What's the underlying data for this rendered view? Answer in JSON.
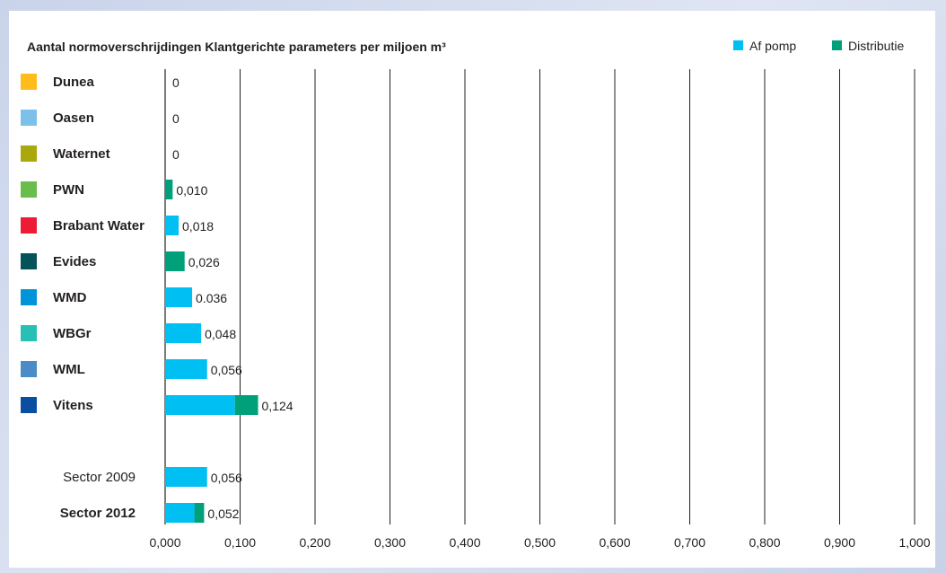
{
  "chart_data": {
    "type": "bar",
    "stacked": true,
    "orientation": "horizontal",
    "title": "Aantal normoverschrijdingen Klantgerichte parameters per miljoen m³",
    "legend": {
      "placement": "top-right",
      "items": [
        {
          "name": "Af pomp",
          "color": "#00bff3"
        },
        {
          "name": "Distributie",
          "color": "#00a07a"
        }
      ]
    },
    "xlim": [
      0,
      1.0
    ],
    "xticks": [
      "0,000",
      "0,100",
      "0,200",
      "0,300",
      "0,400",
      "0,500",
      "0,600",
      "0,700",
      "0,800",
      "0,900",
      "1,000"
    ],
    "grid": "vertical",
    "categories": [
      {
        "label": "Dunea",
        "bold": true,
        "swatch": "#ffbd1a",
        "af_pomp": 0,
        "distributie": 0,
        "value_label": "0"
      },
      {
        "label": "Oasen",
        "bold": true,
        "swatch": "#7cc1e9",
        "af_pomp": 0,
        "distributie": 0,
        "value_label": "0"
      },
      {
        "label": "Waternet",
        "bold": true,
        "swatch": "#a9a80d",
        "af_pomp": 0,
        "distributie": 0,
        "value_label": "0"
      },
      {
        "label": "PWN",
        "bold": true,
        "swatch": "#6abd4a",
        "af_pomp": 0,
        "distributie": 0.01,
        "value_label": "0,010"
      },
      {
        "label": "Brabant Water",
        "bold": true,
        "swatch": "#ec1c35",
        "af_pomp": 0.018,
        "distributie": 0,
        "value_label": "0,018"
      },
      {
        "label": "Evides",
        "bold": true,
        "swatch": "#045359",
        "af_pomp": 0,
        "distributie": 0.026,
        "value_label": "0,026"
      },
      {
        "label": "WMD",
        "bold": true,
        "swatch": "#0095d8",
        "af_pomp": 0.036,
        "distributie": 0,
        "value_label": "0.036"
      },
      {
        "label": "WBGr",
        "bold": true,
        "swatch": "#26c0b4",
        "af_pomp": 0.048,
        "distributie": 0,
        "value_label": "0,048"
      },
      {
        "label": "WML",
        "bold": true,
        "swatch": "#4a8bc8",
        "af_pomp": 0.056,
        "distributie": 0,
        "value_label": "0,056"
      },
      {
        "label": "Vitens",
        "bold": true,
        "swatch": "#0a4ea3",
        "af_pomp": 0.093,
        "distributie": 0.031,
        "value_label": "0,124"
      },
      {
        "label": "Sector 2009",
        "bold": false,
        "swatch": null,
        "af_pomp": 0.056,
        "distributie": 0,
        "value_label": "0,056",
        "gap_before": true
      },
      {
        "label": "Sector 2012",
        "bold": true,
        "swatch": null,
        "af_pomp": 0.039,
        "distributie": 0.013,
        "value_label": "0,052"
      }
    ]
  }
}
